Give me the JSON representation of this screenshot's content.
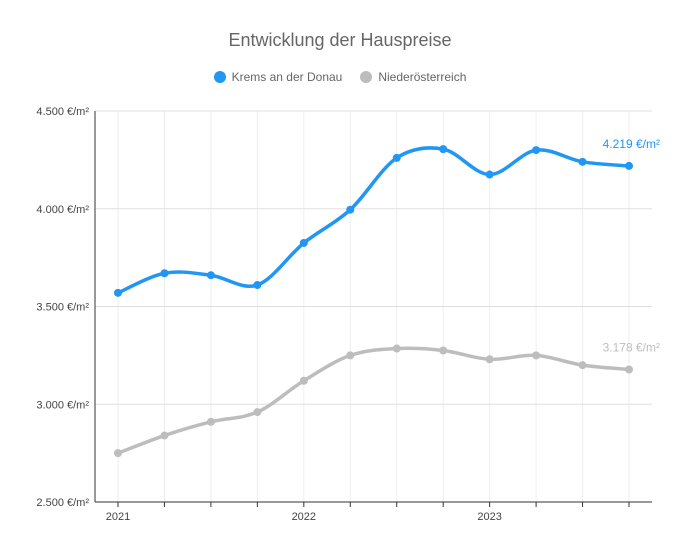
{
  "chart_data": {
    "type": "line",
    "title": "Entwicklung der Hauspreise",
    "x": [
      "2021-Q1",
      "2021-Q2",
      "2021-Q3",
      "2021-Q4",
      "2022-Q1",
      "2022-Q2",
      "2022-Q3",
      "2022-Q4",
      "2023-Q1",
      "2023-Q2",
      "2023-Q3",
      "2023-Q4"
    ],
    "x_tick_labels": [
      "2021",
      "2022",
      "2023"
    ],
    "x_tick_positions": [
      "2021-Q1",
      "2022-Q1",
      "2023-Q1"
    ],
    "series": [
      {
        "name": "Krems an der Donau",
        "color": "#2196F3",
        "values": [
          3570,
          3670,
          3660,
          3610,
          3825,
          3995,
          4260,
          4305,
          4175,
          4300,
          4240,
          4219
        ],
        "end_label": "4.219 €/m²"
      },
      {
        "name": "Niederösterreich",
        "color": "#BDBDBD",
        "values": [
          2750,
          2840,
          2910,
          2960,
          3120,
          3250,
          3285,
          3275,
          3230,
          3250,
          3200,
          3178
        ],
        "end_label": "3.178 €/m²"
      }
    ],
    "ylim": [
      2500,
      4500
    ],
    "y_ticks": [
      2500,
      3000,
      3500,
      4000,
      4500
    ],
    "y_tick_labels": [
      "2.500 €/m²",
      "3.000 €/m²",
      "3.500 €/m²",
      "4.000 €/m²",
      "4.500 €/m²"
    ],
    "xlabel": "",
    "ylabel": "",
    "grid": true,
    "legend_position": "top"
  }
}
